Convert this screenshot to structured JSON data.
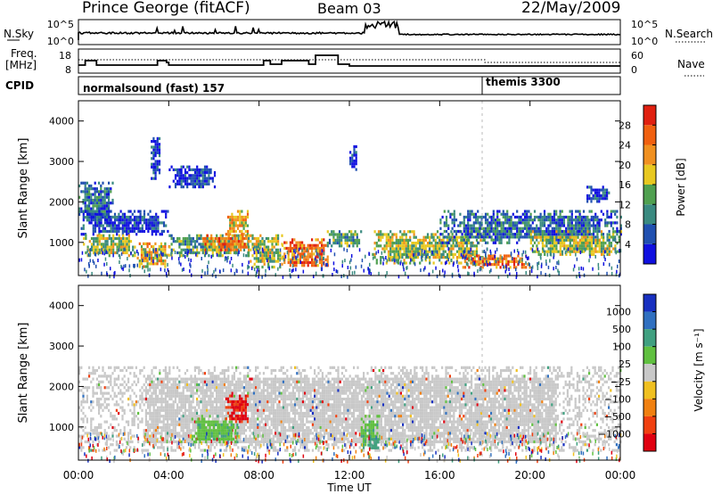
{
  "header": {
    "title": "Prince George (fitACF)",
    "beam": "Beam 03",
    "date": "22/May/2009"
  },
  "nsky_panel": {
    "left_label": "N.Sky",
    "left_ticks": [
      "10^5",
      "10^0"
    ],
    "right_label": "N.Search",
    "right_ticks": [
      "10^5",
      "10^0"
    ]
  },
  "freq_panel": {
    "left_label_1": "Freq.",
    "left_label_2": "[MHz]",
    "left_ticks": [
      "18",
      "8"
    ],
    "right_label": "Nave",
    "right_ticks": [
      "60",
      "0"
    ]
  },
  "cpid": {
    "label": "CPID",
    "segments": [
      {
        "name": "normalsound (fast) 157",
        "start_hour": 0
      },
      {
        "name": "themis 3300",
        "start_hour": 18
      }
    ]
  },
  "axes": {
    "ylabel": "Slant Range [km]",
    "yticks": [
      "1000",
      "2000",
      "3000",
      "4000"
    ],
    "xticks": [
      "00:00",
      "04:00",
      "08:00",
      "12:00",
      "16:00",
      "20:00",
      "00:00"
    ],
    "xlabel": "Time UT"
  },
  "power_scale": {
    "label": "Power [dB]",
    "ticks": [
      "4",
      "8",
      "12",
      "16",
      "20",
      "24",
      "28"
    ],
    "colors": [
      "#1010e0",
      "#2050b0",
      "#3a8a80",
      "#50a050",
      "#e8c820",
      "#f09020",
      "#f06010",
      "#e02010"
    ]
  },
  "velocity_scale": {
    "label": "Velocity [m s⁻¹]",
    "ticks": [
      "1000",
      "500",
      "100",
      "25",
      "−25",
      "−100",
      "−500",
      "−1000"
    ],
    "colors": [
      "#1830c0",
      "#3070c0",
      "#40a080",
      "#60c040",
      "#c8c8c8",
      "#f0c020",
      "#f08010",
      "#f04010",
      "#e00010"
    ]
  },
  "chart_data": [
    {
      "type": "heatmap",
      "title": "Power [dB]",
      "x_range_hours": [
        0,
        24
      ],
      "y_range_km": [
        180,
        4500
      ],
      "regions": [
        {
          "t": [
            0.0,
            1.5
          ],
          "r": [
            1500,
            2500
          ],
          "level": 12
        },
        {
          "t": [
            0.1,
            4.0
          ],
          "r": [
            1200,
            1800
          ],
          "level": 8
        },
        {
          "t": [
            0.2,
            2.5
          ],
          "r": [
            700,
            1200
          ],
          "level": 20
        },
        {
          "t": [
            2.5,
            4.0
          ],
          "r": [
            400,
            1000
          ],
          "level": 24
        },
        {
          "t": [
            3.2,
            3.6
          ],
          "r": [
            2600,
            3600
          ],
          "level": 8
        },
        {
          "t": [
            4.0,
            6.0
          ],
          "r": [
            2400,
            2900
          ],
          "level": 8
        },
        {
          "t": [
            4.0,
            7.5
          ],
          "r": [
            700,
            1200
          ],
          "level": 16
        },
        {
          "t": [
            5.5,
            7.5
          ],
          "r": [
            800,
            1200
          ],
          "level": 28
        },
        {
          "t": [
            6.5,
            7.5
          ],
          "r": [
            1200,
            1800
          ],
          "level": 24
        },
        {
          "t": [
            7.5,
            9.0
          ],
          "r": [
            400,
            1200
          ],
          "level": 20
        },
        {
          "t": [
            9.0,
            11.0
          ],
          "r": [
            400,
            1100
          ],
          "level": 28
        },
        {
          "t": [
            11.0,
            12.5
          ],
          "r": [
            900,
            1300
          ],
          "level": 16
        },
        {
          "t": [
            12.0,
            12.3
          ],
          "r": [
            2800,
            3400
          ],
          "level": 8
        },
        {
          "t": [
            13.0,
            18.0
          ],
          "r": [
            500,
            1300
          ],
          "level": 20
        },
        {
          "t": [
            17.0,
            20.0
          ],
          "r": [
            400,
            700
          ],
          "level": 28
        },
        {
          "t": [
            16.0,
            24.0
          ],
          "r": [
            1000,
            1800
          ],
          "level": 12
        },
        {
          "t": [
            20.0,
            24.0
          ],
          "r": [
            700,
            1300
          ],
          "level": 20
        },
        {
          "t": [
            22.5,
            23.5
          ],
          "r": [
            2000,
            2400
          ],
          "level": 8
        }
      ]
    },
    {
      "type": "heatmap",
      "title": "Velocity [m s⁻¹]",
      "x_range_hours": [
        0,
        24
      ],
      "y_range_km": [
        180,
        4500
      ],
      "regions": [
        {
          "t": [
            0.0,
            24.0
          ],
          "r": [
            400,
            2500
          ],
          "value": 0
        },
        {
          "t": [
            5.0,
            7.0
          ],
          "r": [
            600,
            1300
          ],
          "value": 150
        },
        {
          "t": [
            6.5,
            7.5
          ],
          "r": [
            1100,
            1800
          ],
          "value": -700
        },
        {
          "t": [
            12.5,
            13.3
          ],
          "r": [
            500,
            1300
          ],
          "value": 300
        },
        {
          "t": [
            12.8,
            13.3
          ],
          "r": [
            400,
            800
          ],
          "value": 80
        }
      ]
    }
  ]
}
